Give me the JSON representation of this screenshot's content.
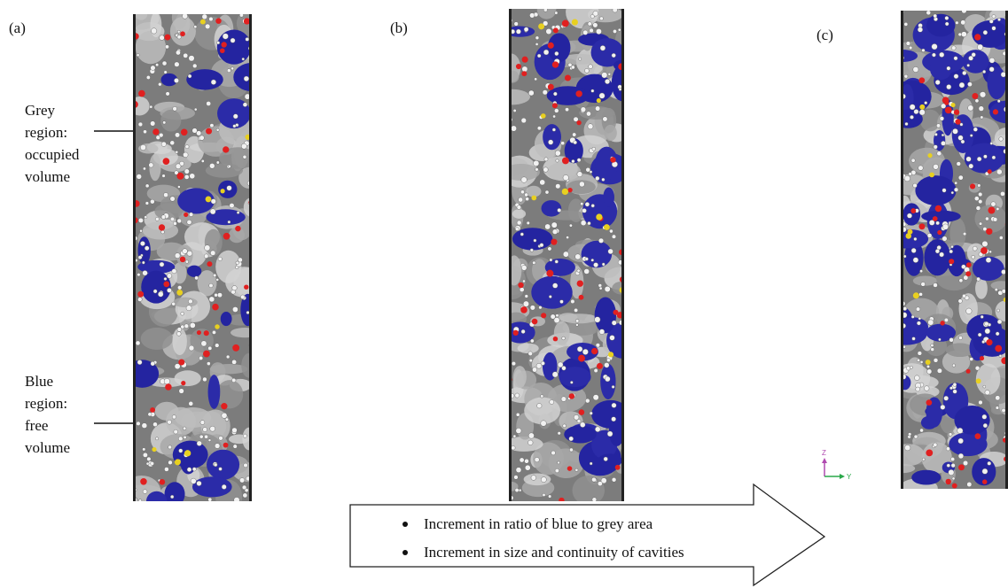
{
  "panels": [
    {
      "label": "(a)"
    },
    {
      "label": "(b)"
    },
    {
      "label": "(c)"
    }
  ],
  "annotations": {
    "grey": [
      "Grey",
      "region:",
      "occupied",
      "volume"
    ],
    "blue": [
      "Blue",
      "region:",
      "free",
      "volume"
    ]
  },
  "trend_arrow": {
    "items": [
      "Increment in ratio of blue to grey area",
      "Increment in size and continuity of cavities"
    ]
  },
  "axes_triad": {
    "z_label": "Z",
    "y_label": "Y"
  },
  "colors": {
    "free_volume": "#2b2ba8",
    "occupied_volume": "#9a9a9a",
    "oxygen_atom": "#e02020",
    "sulfur_atom": "#e8d020",
    "z_axis": "#b04ab0",
    "y_axis": "#2aa84a"
  }
}
